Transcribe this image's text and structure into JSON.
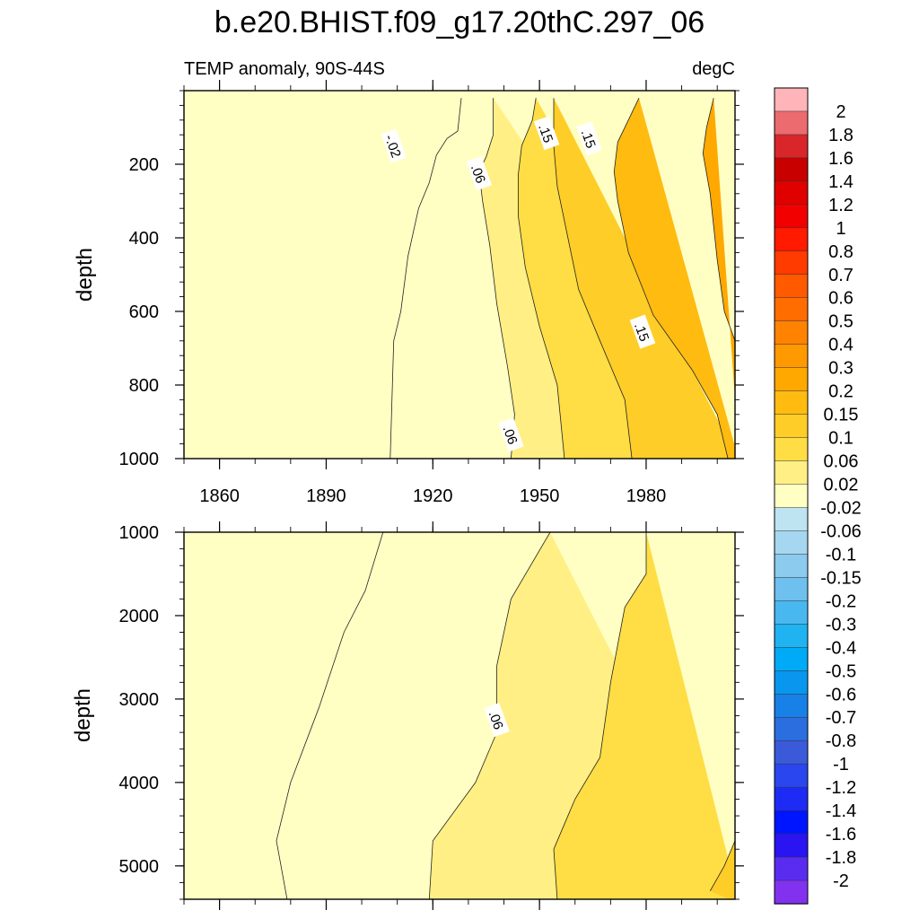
{
  "title": "b.e20.BHIST.f09_g17.20thC.297_06",
  "subtitle_left": "TEMP anomaly, 90S-44S",
  "subtitle_right": "degC",
  "chart_data": [
    {
      "type": "heatmap",
      "panel": "upper",
      "ylabel": "depth",
      "xlim": [
        1850,
        2005
      ],
      "ylim": [
        0,
        1000
      ],
      "y_reversed": true,
      "x_ticks": [
        "1860",
        "1890",
        "1920",
        "1950",
        "1980"
      ],
      "x_tick_values": [
        1860,
        1890,
        1920,
        1950,
        1980
      ],
      "y_ticks": [
        "200",
        "400",
        "600",
        "800",
        "1000"
      ],
      "y_tick_values": [
        200,
        400,
        600,
        800,
        1000
      ],
      "contour_labels": [
        {
          "text": "-.02",
          "x": 1909,
          "y": 150
        },
        {
          "text": ".06",
          "x": 1933,
          "y": 225
        },
        {
          "text": ".15",
          "x": 1952,
          "y": 115
        },
        {
          "text": ".15",
          "x": 1964,
          "y": 130
        },
        {
          "text": ".15",
          "x": 1979,
          "y": 655
        },
        {
          "text": ".06",
          "x": 1942,
          "y": 935
        }
      ],
      "contours": [
        {
          "level": 0.02,
          "points": [
            [
              1908,
              1000
            ],
            [
              1909,
              680
            ],
            [
              1911,
              600
            ],
            [
              1913,
              450
            ],
            [
              1916,
              320
            ],
            [
              1919,
              250
            ],
            [
              1921,
              175
            ],
            [
              1924,
              130
            ],
            [
              1927,
              110
            ],
            [
              1928,
              20
            ]
          ]
        },
        {
          "level": 0.06,
          "points": [
            [
              1942,
              1000
            ],
            [
              1943,
              880
            ],
            [
              1941,
              750
            ],
            [
              1938,
              580
            ],
            [
              1936,
              420
            ],
            [
              1934,
              300
            ],
            [
              1933,
              220
            ],
            [
              1935,
              180
            ],
            [
              1937,
              120
            ],
            [
              1937,
              20
            ]
          ]
        },
        {
          "level": 0.1,
          "points": [
            [
              1957,
              1000
            ],
            [
              1955,
              800
            ],
            [
              1950,
              640
            ],
            [
              1946,
              480
            ],
            [
              1944,
              340
            ],
            [
              1944,
              230
            ],
            [
              1945,
              150
            ],
            [
              1948,
              80
            ],
            [
              1949,
              20
            ]
          ]
        },
        {
          "level": 0.15,
          "points": [
            [
              1976,
              1000
            ],
            [
              1974,
              840
            ],
            [
              1967,
              680
            ],
            [
              1961,
              540
            ],
            [
              1958,
              400
            ],
            [
              1955,
              260
            ],
            [
              1954,
              150
            ],
            [
              1954,
              20
            ]
          ]
        },
        {
          "level": 0.2,
          "points": [
            [
              2003,
              1000
            ],
            [
              2000,
              880
            ],
            [
              1993,
              760
            ],
            [
              1982,
              610
            ],
            [
              1975,
              440
            ],
            [
              1972,
              300
            ],
            [
              1971,
              220
            ],
            [
              1972,
              140
            ],
            [
              1976,
              60
            ],
            [
              1978,
              20
            ]
          ]
        },
        {
          "level": 0.3,
          "points": [
            [
              2005,
              680
            ],
            [
              2002,
              600
            ],
            [
              2000,
              460
            ],
            [
              1998,
              280
            ],
            [
              1996,
              170
            ],
            [
              1997,
              100
            ],
            [
              1999,
              20
            ]
          ]
        }
      ]
    },
    {
      "type": "heatmap",
      "panel": "lower",
      "ylabel": "depth",
      "xlim": [
        1850,
        2005
      ],
      "ylim": [
        1000,
        5400
      ],
      "y_reversed": true,
      "y_ticks": [
        "1000",
        "2000",
        "3000",
        "4000",
        "5000"
      ],
      "y_tick_values": [
        1000,
        2000,
        3000,
        4000,
        5000
      ],
      "contour_labels": [
        {
          "text": ".06",
          "x": 1938,
          "y": 3250
        }
      ],
      "contours": [
        {
          "level": 0.02,
          "points": [
            [
              1906,
              1000
            ],
            [
              1901,
              1700
            ],
            [
              1895,
              2200
            ],
            [
              1888,
              3100
            ],
            [
              1880,
              4000
            ],
            [
              1876,
              4700
            ],
            [
              1879,
              5400
            ]
          ]
        },
        {
          "level": 0.06,
          "points": [
            [
              1953,
              1000
            ],
            [
              1942,
              1800
            ],
            [
              1938,
              2600
            ],
            [
              1938,
              3400
            ],
            [
              1932,
              4000
            ],
            [
              1920,
              4700
            ],
            [
              1919,
              5400
            ]
          ]
        },
        {
          "level": 0.1,
          "points": [
            [
              1980,
              1000
            ],
            [
              1980,
              1500
            ],
            [
              1974,
              1900
            ],
            [
              1970,
              2800
            ],
            [
              1967,
              3700
            ],
            [
              1960,
              4200
            ],
            [
              1954,
              4800
            ],
            [
              1955,
              5400
            ]
          ]
        },
        {
          "level": 0.15,
          "points": [
            [
              2005,
              4700
            ],
            [
              2002,
              5000
            ],
            [
              1998,
              5300
            ]
          ]
        }
      ]
    }
  ],
  "colorbar": {
    "levels": [
      "2",
      "1.8",
      "1.6",
      "1.4",
      "1.2",
      "1",
      "0.8",
      "0.7",
      "0.6",
      "0.5",
      "0.4",
      "0.3",
      "0.2",
      "0.15",
      "0.1",
      "0.06",
      "0.02",
      "-0.02",
      "-0.06",
      "-0.1",
      "-0.15",
      "-0.2",
      "-0.3",
      "-0.4",
      "-0.5",
      "-0.6",
      "-0.7",
      "-0.8",
      "-1",
      "-1.2",
      "-1.4",
      "-1.6",
      "-1.8",
      "-2"
    ],
    "colors": [
      "#ffb4b9",
      "#ec6b6e",
      "#d8262b",
      "#c90000",
      "#e10000",
      "#f20000",
      "#ff1a00",
      "#ff3b00",
      "#ff5a00",
      "#ff6d00",
      "#ff8300",
      "#ff9900",
      "#ffa800",
      "#ffbb10",
      "#ffcd28",
      "#ffdd44",
      "#ffef85",
      "#ffffc4",
      "#bee4f2",
      "#a6d7f0",
      "#8ccaee",
      "#6ec0ee",
      "#49b8f0",
      "#1fb3f2",
      "#00aaf6",
      "#0996ee",
      "#1781e8",
      "#2a6ee0",
      "#3a5ad9",
      "#2946ef",
      "#1e2bf5",
      "#0015ff",
      "#2a14f2",
      "#5a2cf0",
      "#8232ee"
    ]
  }
}
